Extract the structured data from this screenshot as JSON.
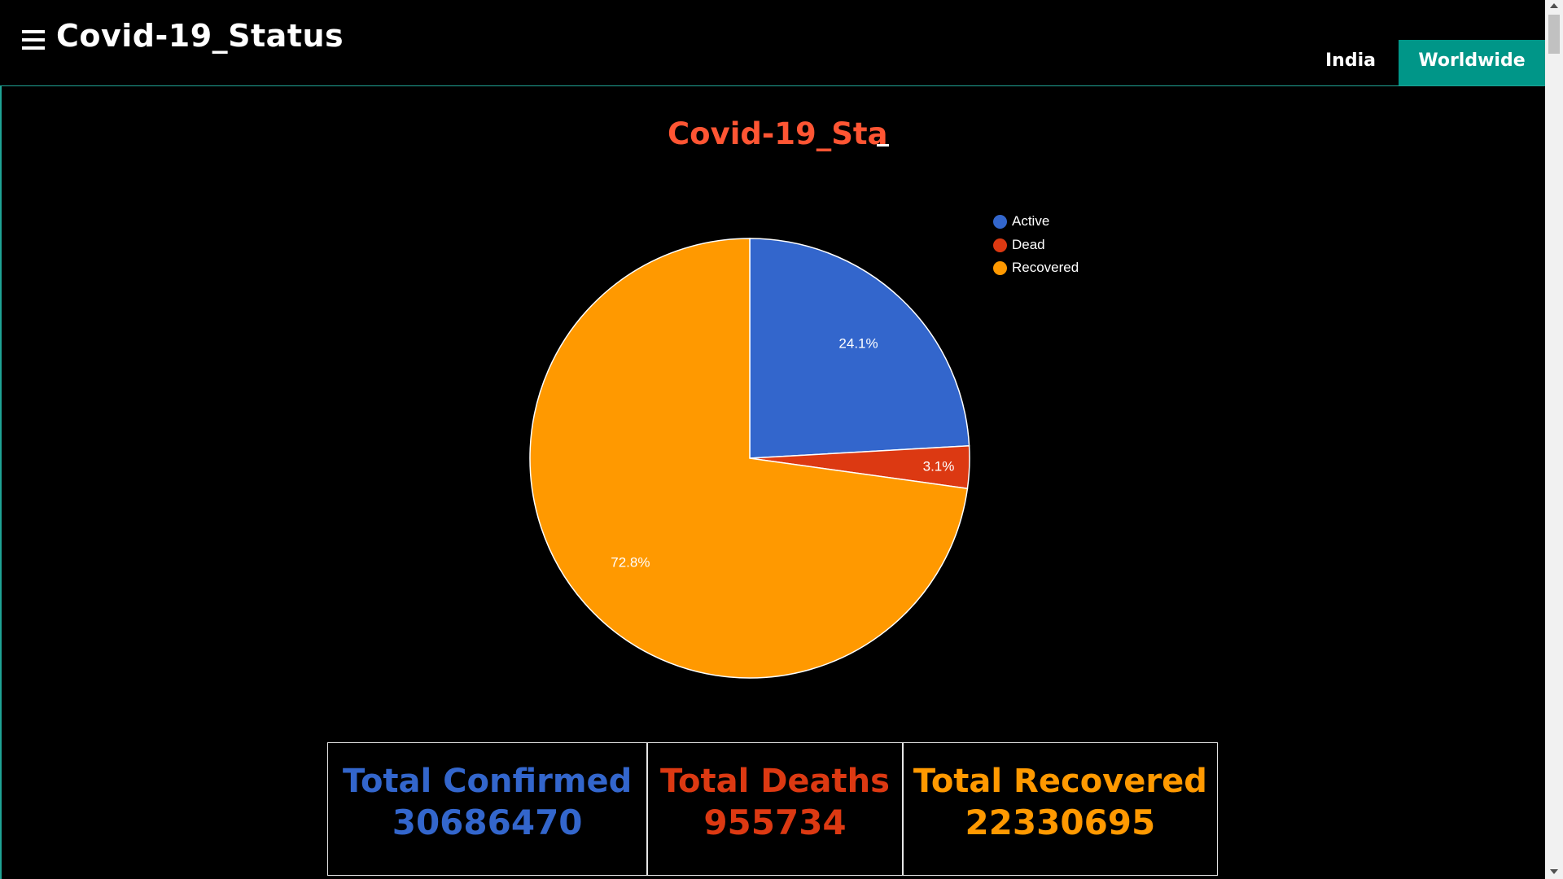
{
  "header": {
    "title": "Covid-19_Status",
    "menu_icon": "hamburger-menu-icon",
    "tabs": [
      {
        "label": "India",
        "active": false
      },
      {
        "label": "Worldwide",
        "active": true
      }
    ]
  },
  "chart_title": "Covid-19_Sta",
  "chart_data": {
    "type": "pie",
    "legend_position": "top-right",
    "categories": [
      "Active",
      "Dead",
      "Recovered"
    ],
    "values": [
      24.1,
      3.1,
      72.8
    ],
    "labels": [
      "24.1%",
      "3.1%",
      "72.8%"
    ],
    "colors": [
      "#3366cc",
      "#dc3912",
      "#ff9900"
    ]
  },
  "stats": [
    {
      "label": "Total Confirmed",
      "value": "30686470",
      "color": "#3366cc"
    },
    {
      "label": "Total Deaths",
      "value": "955734",
      "color": "#dc3912"
    },
    {
      "label": "Total Recovered",
      "value": "22330695",
      "color": "#ff9900"
    }
  ],
  "colors": {
    "background": "#000000",
    "accent": "#009688",
    "title_red": "#ff5533"
  }
}
